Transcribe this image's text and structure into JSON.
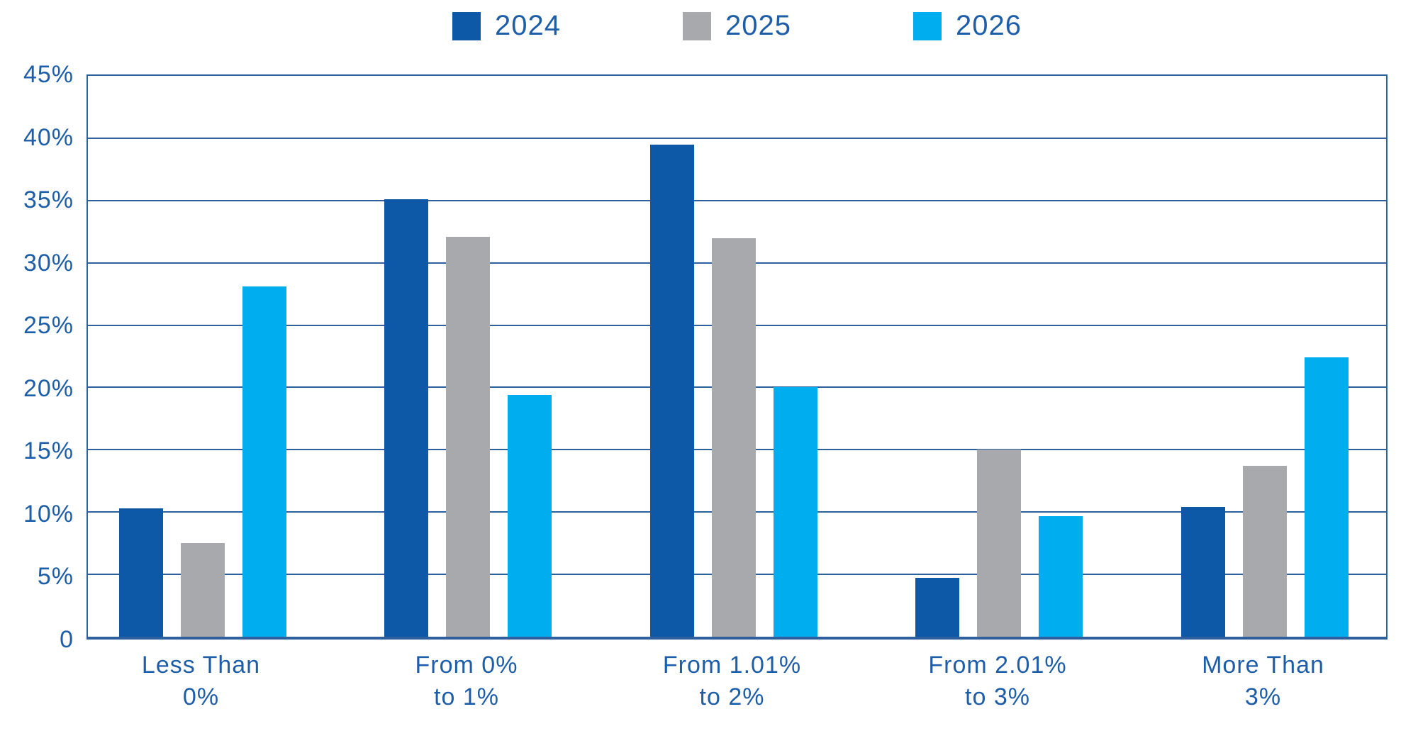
{
  "chart_data": {
    "type": "bar",
    "title": "",
    "categories": [
      {
        "line1": "Less Than",
        "line2": "0%"
      },
      {
        "line1": "From 0%",
        "line2": "to 1%"
      },
      {
        "line1": "From 1.01%",
        "line2": "to 2%"
      },
      {
        "line1": "From 2.01%",
        "line2": "to 3%"
      },
      {
        "line1": "More Than",
        "line2": "3%"
      }
    ],
    "series": [
      {
        "name": "2024",
        "color": "#0E58A8",
        "values": [
          10.3,
          35.1,
          39.5,
          4.7,
          10.4
        ]
      },
      {
        "name": "2025",
        "color": "#A7A9AC",
        "values": [
          7.5,
          32.1,
          32.0,
          15.0,
          13.7
        ]
      },
      {
        "name": "2026",
        "color": "#00AEEF",
        "values": [
          28.1,
          19.4,
          20.0,
          9.7,
          22.4
        ]
      }
    ],
    "y_axis": {
      "min": 0,
      "max": 45,
      "step": 5,
      "tick_labels": [
        "45%",
        "40%",
        "35%",
        "30%",
        "25%",
        "20%",
        "15%",
        "10%",
        "5%",
        "0"
      ]
    },
    "legend": {
      "position": "top-center",
      "entries": [
        "2024",
        "2025",
        "2026"
      ]
    },
    "grid": true,
    "colors": {
      "axis_text": "#1E5EA8",
      "grid_line": "#2E5F9E",
      "background": "#FFFFFF"
    }
  }
}
